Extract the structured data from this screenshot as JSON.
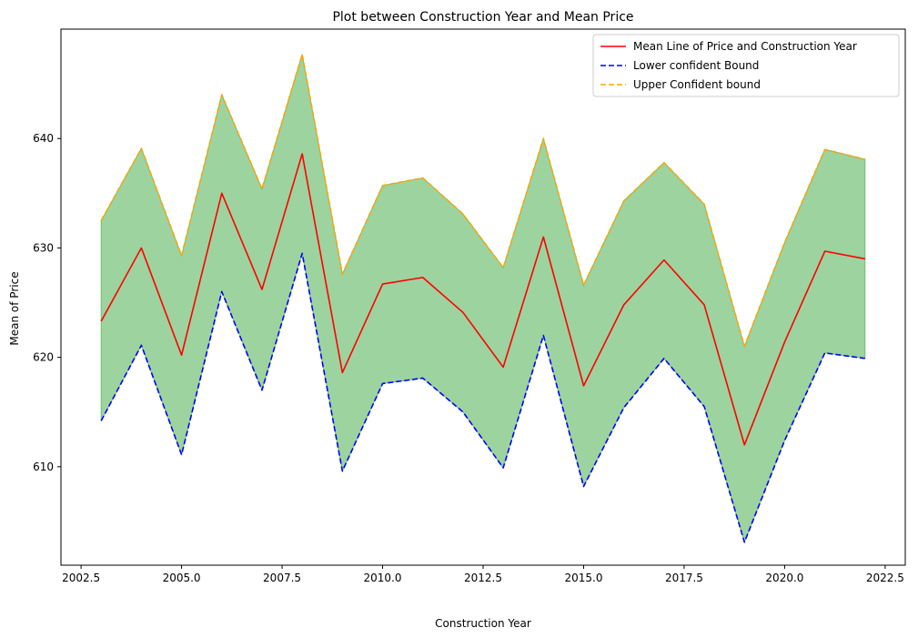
{
  "chart_data": {
    "type": "line",
    "title": "Plot between Construction Year and Mean Price",
    "xlabel": "Construction Year",
    "ylabel": "Mean of Price",
    "xlim": [
      2002.0,
      2023.0
    ],
    "ylim": [
      601.0,
      650.0
    ],
    "x_ticks": [
      2002.5,
      2005.0,
      2007.5,
      2010.0,
      2012.5,
      2015.0,
      2017.5,
      2020.0,
      2022.5
    ],
    "x_tick_labels": [
      "2002.5",
      "2005.0",
      "2007.5",
      "2010.0",
      "2012.5",
      "2015.0",
      "2017.5",
      "2020.0",
      "2022.5"
    ],
    "y_ticks": [
      610,
      620,
      630,
      640
    ],
    "y_tick_labels": [
      "610",
      "620",
      "630",
      "640"
    ],
    "x": [
      2003,
      2004,
      2005,
      2006,
      2007,
      2008,
      2009,
      2010,
      2011,
      2012,
      2013,
      2014,
      2015,
      2016,
      2017,
      2018,
      2019,
      2020,
      2021,
      2022
    ],
    "series": [
      {
        "name": "Mean Line of Price and Construction Year",
        "color": "#ff0000",
        "style": "solid",
        "values": [
          623.3,
          630.0,
          620.2,
          635.0,
          626.2,
          638.6,
          618.6,
          626.7,
          627.3,
          624.1,
          619.1,
          631.0,
          617.4,
          624.8,
          628.9,
          624.8,
          612.0,
          621.4,
          629.7,
          629.0
        ]
      },
      {
        "name": "Lower confident Bound",
        "color": "#0000ff",
        "style": "dashed",
        "values": [
          614.2,
          621.1,
          611.1,
          626.0,
          617.0,
          629.5,
          609.6,
          617.6,
          618.1,
          615.0,
          609.9,
          622.0,
          608.2,
          615.4,
          619.9,
          615.5,
          603.1,
          612.4,
          620.4,
          619.9
        ]
      },
      {
        "name": "Upper Confident bound",
        "color": "#ffa500",
        "style": "dashed",
        "values": [
          632.5,
          639.1,
          629.3,
          644.0,
          635.4,
          647.7,
          627.6,
          635.7,
          636.4,
          633.1,
          628.2,
          640.0,
          626.6,
          634.3,
          637.8,
          634.0,
          621.0,
          630.5,
          639.0,
          638.1
        ]
      }
    ],
    "fill_between": {
      "lower_series": 1,
      "upper_series": 2,
      "color": "#4caf50",
      "opacity": 0.55
    },
    "legend_position": "top-right",
    "grid": false
  }
}
